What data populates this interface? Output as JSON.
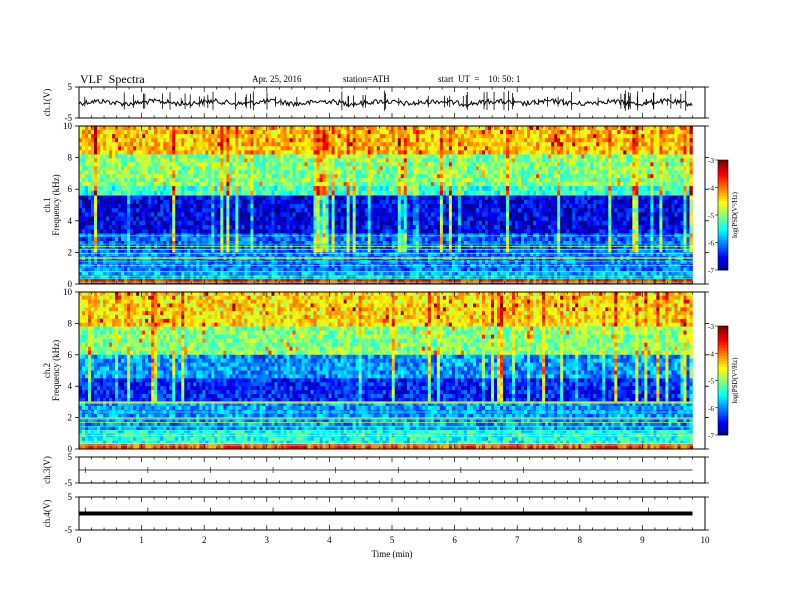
{
  "header": {
    "title": "VLF  Spectra",
    "date": "Apr. 25, 2016",
    "station": "station=ATH",
    "start": "start  UT  =    10: 50: 1"
  },
  "chart_data": [
    {
      "type": "line",
      "panel": "ch1-waveform",
      "ylabel": "ch.1(V)",
      "ylim": [
        -5,
        5
      ],
      "yticks": [
        "5",
        "-5"
      ],
      "xlim": [
        0,
        10
      ],
      "trace_level": 0,
      "trace_extent_min": 9.8
    },
    {
      "type": "heatmap",
      "panel": "ch1-spectrogram",
      "ylabel": "ch.1",
      "ylabel2": "Frequency  (kHz)",
      "ylim": [
        0,
        10
      ],
      "yticks": [
        "0",
        "2",
        "4",
        "6",
        "8",
        "10"
      ],
      "xlim": [
        0,
        10
      ],
      "data_extent_min": 9.8,
      "colorbar": {
        "label": "log(PSD(V²/Hz)",
        "range": [
          -7,
          -3
        ],
        "ticks": [
          "-3",
          "-4",
          "-5",
          "-6",
          "-7"
        ]
      },
      "bands": [
        {
          "f": [
            8.2,
            10
          ],
          "level": -4.3
        },
        {
          "f": [
            6.2,
            8.2
          ],
          "level": -5.0
        },
        {
          "f": [
            5.6,
            6.2
          ],
          "level": -5.3
        },
        {
          "f": [
            3.2,
            5.6
          ],
          "level": -6.6
        },
        {
          "f": [
            2.0,
            3.2
          ],
          "level": -6.1
        },
        {
          "f": [
            0.8,
            2.0
          ],
          "level": -6.0
        },
        {
          "f": [
            0.3,
            0.8
          ],
          "level": -5.8
        },
        {
          "f": [
            0,
            0.3
          ],
          "level": -3.6
        }
      ]
    },
    {
      "type": "heatmap",
      "panel": "ch2-spectrogram",
      "ylabel": "ch.2",
      "ylabel2": "Frequency  (kHz)",
      "ylim": [
        0,
        10
      ],
      "yticks": [
        "0",
        "2",
        "4",
        "6",
        "8",
        "10"
      ],
      "xlim": [
        0,
        10
      ],
      "data_extent_min": 9.8,
      "colorbar": {
        "label": "log(PSD(V²/Hz)",
        "range": [
          -7,
          -3
        ],
        "ticks": [
          "-3",
          "-4",
          "-5",
          "-6",
          "-7"
        ]
      },
      "bands": [
        {
          "f": [
            7.8,
            10
          ],
          "level": -4.4
        },
        {
          "f": [
            6.0,
            7.8
          ],
          "level": -5.0
        },
        {
          "f": [
            4.5,
            6.0
          ],
          "level": -5.9
        },
        {
          "f": [
            3.0,
            4.5
          ],
          "level": -6.4
        },
        {
          "f": [
            1.2,
            3.0
          ],
          "level": -5.9
        },
        {
          "f": [
            0.3,
            1.2
          ],
          "level": -5.4
        },
        {
          "f": [
            0,
            0.3
          ],
          "level": -3.8
        }
      ]
    },
    {
      "type": "line",
      "panel": "ch3-waveform",
      "ylabel": "ch.3(V)",
      "ylim": [
        -5,
        5
      ],
      "yticks": [
        "5",
        "-5"
      ],
      "xlim": [
        0,
        10
      ],
      "trace_level": 0,
      "trace_extent_min": 9.8
    },
    {
      "type": "line",
      "panel": "ch4-waveform",
      "ylabel": "ch.4(V)",
      "ylim": [
        -5,
        5
      ],
      "yticks": [
        "5",
        "-5"
      ],
      "xlim": [
        0,
        10
      ],
      "trace_level": 0,
      "trace_extent_min": 9.8
    }
  ],
  "xaxis": {
    "label": "Time  (min)",
    "ticks": [
      "0",
      "1",
      "2",
      "3",
      "4",
      "5",
      "6",
      "7",
      "8",
      "9",
      "10"
    ]
  }
}
